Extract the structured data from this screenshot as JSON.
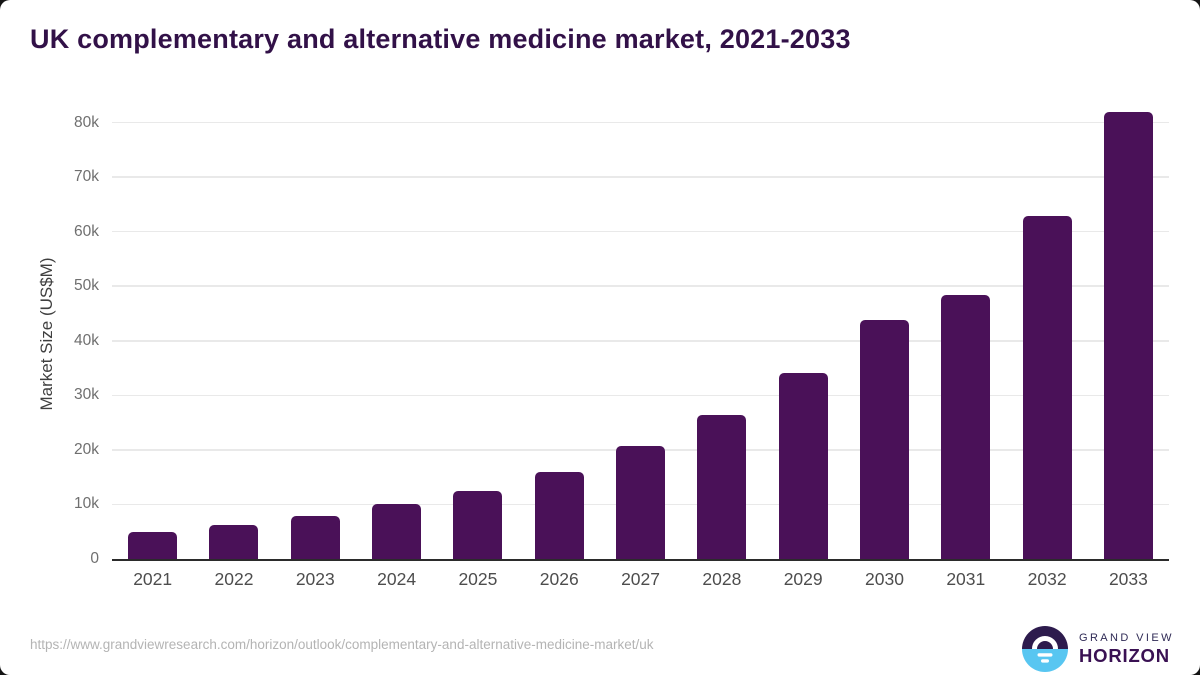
{
  "title": "UK complementary and alternative medicine market, 2021-2033",
  "chart_data": {
    "type": "bar",
    "title": "UK complementary and alternative medicine market, 2021-2033",
    "categories": [
      "2021",
      "2022",
      "2023",
      "2024",
      "2025",
      "2026",
      "2027",
      "2028",
      "2029",
      "2030",
      "2031",
      "2032",
      "2033"
    ],
    "values": [
      4900,
      6200,
      7800,
      10000,
      12500,
      16000,
      20700,
      26400,
      34100,
      43900,
      48400,
      62800,
      82000
    ],
    "xlabel": "",
    "ylabel": "Market Size (US$M)",
    "ylim": [
      0,
      82300
    ],
    "yticks": [
      {
        "value": 0,
        "label": "0"
      },
      {
        "value": 10000,
        "label": "10k"
      },
      {
        "value": 20000,
        "label": "20k"
      },
      {
        "value": 30000,
        "label": "30k"
      },
      {
        "value": 40000,
        "label": "40k"
      },
      {
        "value": 50000,
        "label": "50k"
      },
      {
        "value": 60000,
        "label": "60k"
      },
      {
        "value": 70000,
        "label": "70k"
      },
      {
        "value": 80000,
        "label": "80k"
      }
    ],
    "grid": true,
    "legend": "none",
    "bar_color": "#4a1158"
  },
  "colors": {
    "bar": "#4a1158",
    "title_text": "#321148",
    "logo_dark": "#2d1b4d",
    "logo_blue": "#58c6f1"
  },
  "footer": {
    "source_url": "https://www.grandviewresearch.com/horizon/outlook/complementary-and-alternative-medicine-market/uk",
    "logo": {
      "line1": "GRAND VIEW",
      "line2": "HORIZON"
    }
  }
}
